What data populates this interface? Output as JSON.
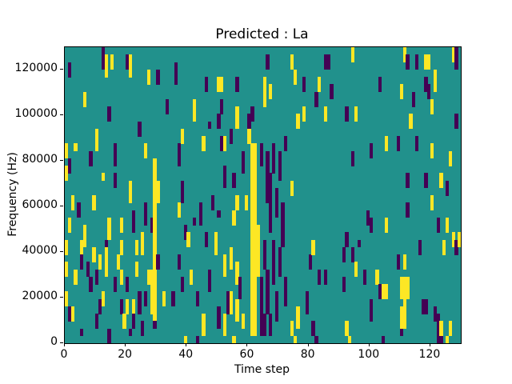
{
  "figure": {
    "title": "Predicted : La",
    "xlabel": "Time step",
    "ylabel": "Frequency (Hz)"
  },
  "chart_data": {
    "type": "heatmap",
    "title": "Predicted : La",
    "xlabel": "Time step",
    "ylabel": "Frequency (Hz)",
    "x_range": [
      0,
      130
    ],
    "y_range": [
      0,
      130000
    ],
    "x_ticks": [
      0,
      20,
      40,
      60,
      80,
      100,
      120
    ],
    "y_ticks": [
      0,
      20000,
      40000,
      60000,
      80000,
      100000,
      120000
    ],
    "grid": {
      "cols": 130,
      "rows": 40
    },
    "legend": "none",
    "value_classes": {
      "mid": "majority/background class",
      "y": "high class",
      "p": "low class"
    },
    "colors": {
      "mid": "#21918c",
      "y": "#fde725",
      "p": "#440154",
      "text": "#000000",
      "figure_bg": "#ffffff"
    },
    "cells_format": "[col, rowTop, rowBottom, class] on a 130x40 grid, row 0 = top (130000 Hz), row 39 = bottom (0 Hz)",
    "cells": [
      [
        0,
        13,
        14,
        "y"
      ],
      [
        0,
        16,
        17,
        "y"
      ],
      [
        0,
        26,
        27,
        "y"
      ],
      [
        0,
        29,
        30,
        "y"
      ],
      [
        0,
        33,
        34,
        "y"
      ],
      [
        1,
        2,
        3,
        "p"
      ],
      [
        1,
        15,
        16,
        "p"
      ],
      [
        1,
        23,
        24,
        "y"
      ],
      [
        1,
        35,
        36,
        "p"
      ],
      [
        2,
        20,
        21,
        "y"
      ],
      [
        2,
        35,
        36,
        "y"
      ],
      [
        3,
        13,
        13,
        "y"
      ],
      [
        3,
        30,
        31,
        "y"
      ],
      [
        4,
        21,
        22,
        "p"
      ],
      [
        5,
        26,
        27,
        "y"
      ],
      [
        5,
        28,
        29,
        "p"
      ],
      [
        5,
        38,
        38,
        "p"
      ],
      [
        6,
        6,
        7,
        "y"
      ],
      [
        6,
        24,
        26,
        "y"
      ],
      [
        7,
        29,
        30,
        "p"
      ],
      [
        8,
        14,
        15,
        "p"
      ],
      [
        8,
        31,
        32,
        "p"
      ],
      [
        9,
        20,
        21,
        "y"
      ],
      [
        9,
        27,
        28,
        "y"
      ],
      [
        10,
        11,
        13,
        "y"
      ],
      [
        10,
        30,
        31,
        "p"
      ],
      [
        10,
        36,
        37,
        "p"
      ],
      [
        11,
        28,
        29,
        "y"
      ],
      [
        11,
        34,
        35,
        "p"
      ],
      [
        12,
        0,
        2,
        "p"
      ],
      [
        12,
        17,
        17,
        "y"
      ],
      [
        12,
        33,
        34,
        "y"
      ],
      [
        13,
        1,
        3,
        "y"
      ],
      [
        13,
        26,
        26,
        "p"
      ],
      [
        13,
        27,
        30,
        "y"
      ],
      [
        14,
        8,
        9,
        "p"
      ],
      [
        14,
        23,
        25,
        "y"
      ],
      [
        14,
        38,
        39,
        "p"
      ],
      [
        15,
        1,
        2,
        "y"
      ],
      [
        16,
        13,
        15,
        "p"
      ],
      [
        16,
        17,
        18,
        "p"
      ],
      [
        16,
        31,
        32,
        "p"
      ],
      [
        17,
        28,
        29,
        "y"
      ],
      [
        18,
        23,
        24,
        "y"
      ],
      [
        18,
        26,
        27,
        "y"
      ],
      [
        18,
        30,
        31,
        "y"
      ],
      [
        18,
        34,
        35,
        "p"
      ],
      [
        19,
        36,
        37,
        "y"
      ],
      [
        20,
        1,
        2,
        "p"
      ],
      [
        20,
        31,
        32,
        "p"
      ],
      [
        20,
        34,
        35,
        "y"
      ],
      [
        21,
        1,
        3,
        "y"
      ],
      [
        21,
        18,
        20,
        "y"
      ],
      [
        21,
        38,
        38,
        "p"
      ],
      [
        22,
        22,
        24,
        "p"
      ],
      [
        22,
        34,
        35,
        "y"
      ],
      [
        22,
        36,
        37,
        "p"
      ],
      [
        23,
        26,
        27,
        "y"
      ],
      [
        23,
        29,
        30,
        "y"
      ],
      [
        24,
        10,
        11,
        "p"
      ],
      [
        24,
        33,
        35,
        "p"
      ],
      [
        25,
        25,
        27,
        "y"
      ],
      [
        25,
        37,
        38,
        "p"
      ],
      [
        26,
        13,
        14,
        "y"
      ],
      [
        26,
        21,
        23,
        "p"
      ],
      [
        26,
        33,
        34,
        "p"
      ],
      [
        27,
        3,
        4,
        "y"
      ],
      [
        27,
        30,
        31,
        "y"
      ],
      [
        28,
        23,
        24,
        "p"
      ],
      [
        28,
        30,
        35,
        "y"
      ],
      [
        29,
        15,
        36,
        "y"
      ],
      [
        29,
        37,
        37,
        "p"
      ],
      [
        30,
        3,
        4,
        "p"
      ],
      [
        30,
        18,
        20,
        "y"
      ],
      [
        30,
        28,
        29,
        "p"
      ],
      [
        32,
        33,
        34,
        "y"
      ],
      [
        33,
        7,
        8,
        "p"
      ],
      [
        35,
        33,
        34,
        "p"
      ],
      [
        36,
        2,
        4,
        "p"
      ],
      [
        37,
        13,
        15,
        "p"
      ],
      [
        37,
        21,
        22,
        "y"
      ],
      [
        37,
        28,
        29,
        "p"
      ],
      [
        38,
        11,
        12,
        "y"
      ],
      [
        38,
        18,
        20,
        "p"
      ],
      [
        38,
        31,
        32,
        "p"
      ],
      [
        39,
        24,
        25,
        "p"
      ],
      [
        39,
        39,
        39,
        "y"
      ],
      [
        40,
        25,
        26,
        "y"
      ],
      [
        41,
        30,
        31,
        "y"
      ],
      [
        42,
        7,
        9,
        "y"
      ],
      [
        42,
        23,
        23,
        "p"
      ],
      [
        43,
        33,
        34,
        "p"
      ],
      [
        43,
        39,
        39,
        "p"
      ],
      [
        44,
        21,
        23,
        "p"
      ],
      [
        45,
        12,
        13,
        "y"
      ],
      [
        45,
        36,
        38,
        "y"
      ],
      [
        46,
        4,
        5,
        "p"
      ],
      [
        46,
        25,
        26,
        "p"
      ],
      [
        47,
        10,
        10,
        "p"
      ],
      [
        47,
        30,
        32,
        "p"
      ],
      [
        48,
        20,
        21,
        "p"
      ],
      [
        49,
        25,
        27,
        "y"
      ],
      [
        50,
        4,
        5,
        "y"
      ],
      [
        50,
        9,
        10,
        "p"
      ],
      [
        50,
        22,
        22,
        "p"
      ],
      [
        50,
        35,
        37,
        "p"
      ],
      [
        51,
        4,
        5,
        "y"
      ],
      [
        51,
        7,
        8,
        "p"
      ],
      [
        51,
        12,
        13,
        "p"
      ],
      [
        52,
        12,
        13,
        "y"
      ],
      [
        52,
        16,
        18,
        "p"
      ],
      [
        52,
        28,
        30,
        "y"
      ],
      [
        52,
        36,
        38,
        "y"
      ],
      [
        53,
        33,
        35,
        "p"
      ],
      [
        54,
        11,
        12,
        "p"
      ],
      [
        54,
        27,
        29,
        "y"
      ],
      [
        54,
        33,
        35,
        "y"
      ],
      [
        55,
        17,
        18,
        "p"
      ],
      [
        55,
        22,
        23,
        "y"
      ],
      [
        55,
        39,
        39,
        "y"
      ],
      [
        56,
        4,
        5,
        "p"
      ],
      [
        56,
        8,
        10,
        "y"
      ],
      [
        56,
        20,
        21,
        "y"
      ],
      [
        56,
        29,
        31,
        "y"
      ],
      [
        56,
        34,
        36,
        "y"
      ],
      [
        57,
        31,
        33,
        "p"
      ],
      [
        58,
        14,
        16,
        "p"
      ],
      [
        58,
        36,
        37,
        "y"
      ],
      [
        59,
        20,
        21,
        "y"
      ],
      [
        60,
        9,
        10,
        "p"
      ],
      [
        60,
        11,
        12,
        "y"
      ],
      [
        61,
        8,
        9,
        "p"
      ],
      [
        61,
        13,
        38,
        "y"
      ],
      [
        62,
        13,
        38,
        "y"
      ],
      [
        63,
        24,
        30,
        "y"
      ],
      [
        64,
        13,
        15,
        "p"
      ],
      [
        64,
        31,
        38,
        "p"
      ],
      [
        65,
        4,
        7,
        "y"
      ],
      [
        65,
        26,
        29,
        "p"
      ],
      [
        65,
        36,
        38,
        "p"
      ],
      [
        66,
        1,
        2,
        "p"
      ],
      [
        66,
        14,
        20,
        "p"
      ],
      [
        66,
        30,
        35,
        "p"
      ],
      [
        67,
        5,
        6,
        "y"
      ],
      [
        67,
        17,
        24,
        "p"
      ],
      [
        67,
        36,
        38,
        "p"
      ],
      [
        68,
        13,
        16,
        "p"
      ],
      [
        68,
        26,
        31,
        "p"
      ],
      [
        69,
        19,
        22,
        "p"
      ],
      [
        69,
        33,
        36,
        "p"
      ],
      [
        70,
        14,
        17,
        "p"
      ],
      [
        70,
        27,
        30,
        "p"
      ],
      [
        71,
        21,
        26,
        "p"
      ],
      [
        72,
        12,
        13,
        "p"
      ],
      [
        72,
        31,
        34,
        "p"
      ],
      [
        74,
        1,
        2,
        "y"
      ],
      [
        74,
        18,
        19,
        "y"
      ],
      [
        74,
        37,
        38,
        "y"
      ],
      [
        75,
        3,
        4,
        "y"
      ],
      [
        75,
        39,
        39,
        "y"
      ],
      [
        76,
        9,
        10,
        "y"
      ],
      [
        76,
        35,
        37,
        "y"
      ],
      [
        78,
        4,
        5,
        "p"
      ],
      [
        78,
        8,
        9,
        "y"
      ],
      [
        79,
        33,
        35,
        "p"
      ],
      [
        80,
        28,
        29,
        "p"
      ],
      [
        81,
        26,
        27,
        "y"
      ],
      [
        81,
        37,
        38,
        "p"
      ],
      [
        82,
        6,
        7,
        "p"
      ],
      [
        82,
        39,
        39,
        "p"
      ],
      [
        83,
        4,
        5,
        "y"
      ],
      [
        83,
        30,
        31,
        "p"
      ],
      [
        85,
        1,
        2,
        "p"
      ],
      [
        85,
        8,
        9,
        "y"
      ],
      [
        85,
        30,
        31,
        "p"
      ],
      [
        86,
        1,
        2,
        "p"
      ],
      [
        87,
        5,
        6,
        "p"
      ],
      [
        91,
        27,
        28,
        "p"
      ],
      [
        91,
        31,
        32,
        "p"
      ],
      [
        92,
        8,
        9,
        "p"
      ],
      [
        92,
        25,
        26,
        "p"
      ],
      [
        92,
        37,
        38,
        "y"
      ],
      [
        93,
        39,
        39,
        "y"
      ],
      [
        94,
        0,
        1,
        "y"
      ],
      [
        94,
        14,
        15,
        "p"
      ],
      [
        94,
        27,
        28,
        "p"
      ],
      [
        95,
        8,
        9,
        "y"
      ],
      [
        95,
        29,
        30,
        "y"
      ],
      [
        96,
        26,
        26,
        "p"
      ],
      [
        98,
        30,
        31,
        "p"
      ],
      [
        99,
        22,
        23,
        "p"
      ],
      [
        100,
        13,
        14,
        "p"
      ],
      [
        100,
        23,
        24,
        "p"
      ],
      [
        100,
        34,
        36,
        "p"
      ],
      [
        102,
        30,
        31,
        "y"
      ],
      [
        103,
        4,
        5,
        "p"
      ],
      [
        103,
        32,
        33,
        "p"
      ],
      [
        104,
        32,
        33,
        "y"
      ],
      [
        104,
        39,
        39,
        "p"
      ],
      [
        105,
        12,
        13,
        "y"
      ],
      [
        105,
        23,
        24,
        "y"
      ],
      [
        105,
        32,
        33,
        "y"
      ],
      [
        109,
        12,
        13,
        "p"
      ],
      [
        109,
        28,
        29,
        "p"
      ],
      [
        110,
        5,
        6,
        "y"
      ],
      [
        110,
        31,
        33,
        "y"
      ],
      [
        110,
        35,
        37,
        "y"
      ],
      [
        110,
        38,
        38,
        "p"
      ],
      [
        111,
        0,
        1,
        "y"
      ],
      [
        111,
        28,
        29,
        "y"
      ],
      [
        111,
        31,
        37,
        "y"
      ],
      [
        112,
        1,
        2,
        "p"
      ],
      [
        112,
        17,
        18,
        "p"
      ],
      [
        112,
        21,
        22,
        "p"
      ],
      [
        112,
        31,
        33,
        "y"
      ],
      [
        113,
        9,
        10,
        "y"
      ],
      [
        114,
        6,
        7,
        "p"
      ],
      [
        115,
        1,
        2,
        "p"
      ],
      [
        115,
        12,
        13,
        "p"
      ],
      [
        116,
        26,
        27,
        "p"
      ],
      [
        117,
        34,
        35,
        "p"
      ],
      [
        118,
        1,
        2,
        "y"
      ],
      [
        118,
        4,
        5,
        "p"
      ],
      [
        118,
        17,
        18,
        "p"
      ],
      [
        118,
        34,
        35,
        "p"
      ],
      [
        119,
        1,
        2,
        "y"
      ],
      [
        119,
        5,
        6,
        "p"
      ],
      [
        120,
        7,
        8,
        "y"
      ],
      [
        120,
        13,
        14,
        "y"
      ],
      [
        120,
        20,
        21,
        "y"
      ],
      [
        121,
        3,
        5,
        "y"
      ],
      [
        121,
        35,
        36,
        "p"
      ],
      [
        122,
        23,
        24,
        "p"
      ],
      [
        122,
        36,
        38,
        "p"
      ],
      [
        122,
        39,
        39,
        "p"
      ],
      [
        123,
        17,
        18,
        "y"
      ],
      [
        123,
        37,
        38,
        "y"
      ],
      [
        123,
        39,
        39,
        "p"
      ],
      [
        124,
        26,
        27,
        "y"
      ],
      [
        125,
        18,
        19,
        "p"
      ],
      [
        125,
        23,
        24,
        "y"
      ],
      [
        125,
        39,
        39,
        "y"
      ],
      [
        126,
        14,
        15,
        "y"
      ],
      [
        126,
        37,
        38,
        "y"
      ],
      [
        127,
        0,
        1,
        "y"
      ],
      [
        127,
        25,
        26,
        "y"
      ],
      [
        128,
        0,
        2,
        "p"
      ],
      [
        128,
        9,
        10,
        "p"
      ],
      [
        128,
        26,
        27,
        "p"
      ],
      [
        129,
        25,
        26,
        "y"
      ]
    ]
  }
}
